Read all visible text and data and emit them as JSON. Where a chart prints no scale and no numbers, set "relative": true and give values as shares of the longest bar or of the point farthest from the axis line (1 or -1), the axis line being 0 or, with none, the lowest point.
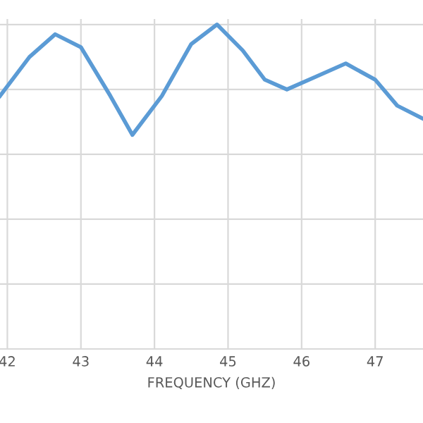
{
  "chart_data": {
    "type": "line",
    "relative": true,
    "xlabel": "FREQUENCY (GHZ)",
    "xlim": [
      41.9,
      47.65
    ],
    "xticks": [
      42,
      43,
      44,
      45,
      46,
      47
    ],
    "grid": true,
    "marker": "none",
    "line_style": "solid",
    "series": [
      {
        "color": "#5b9bd5",
        "x": [
          41.9,
          42.3,
          42.65,
          43.0,
          43.4,
          43.7,
          44.1,
          44.5,
          44.85,
          45.2,
          45.5,
          45.8,
          46.2,
          46.6,
          47.0,
          47.3,
          47.65
        ],
        "values": [
          0.78,
          0.9,
          0.97,
          0.93,
          0.78,
          0.66,
          0.78,
          0.94,
          1.0,
          0.92,
          0.83,
          0.8,
          0.84,
          0.88,
          0.83,
          0.75,
          0.71
        ]
      }
    ]
  }
}
